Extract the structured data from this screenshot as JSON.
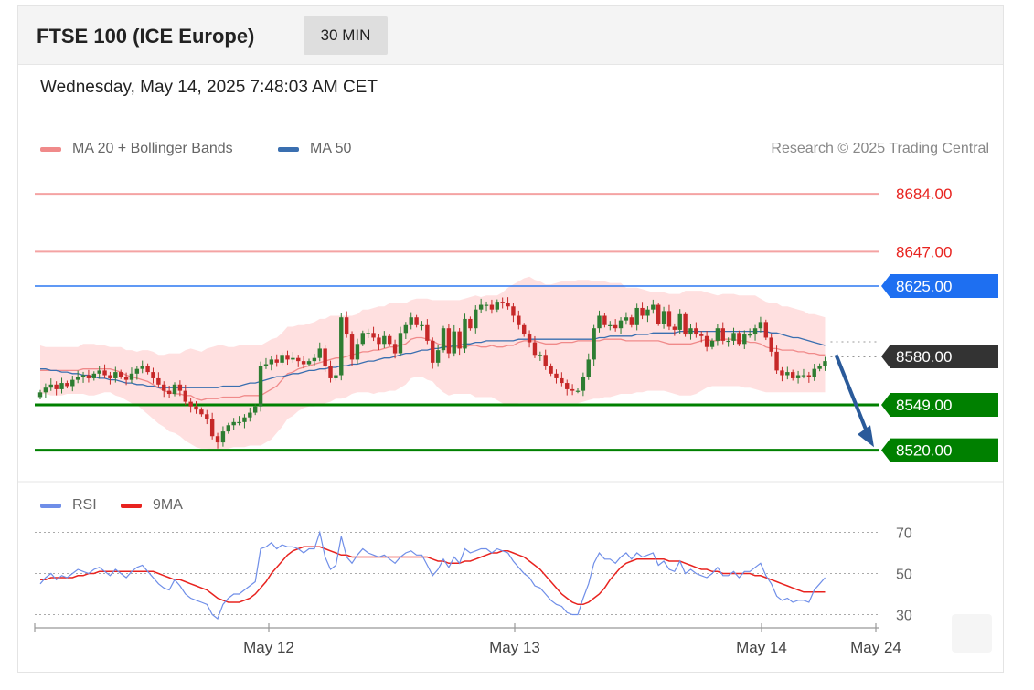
{
  "header": {
    "title": "FTSE 100 (ICE Europe)",
    "interval": "30 MIN"
  },
  "datetime": "Wednesday, May 14, 2025 7:48:03 AM CET",
  "legend": {
    "ma20_bb": "MA 20 + Bollinger Bands",
    "ma50": "MA 50",
    "credit": "Research © 2025 Trading Central",
    "rsi": "RSI",
    "ma9": "9MA"
  },
  "colors": {
    "resistance": "#f4a3a3",
    "resistance_text": "#e8231f",
    "pivot": "#1e6ff1",
    "support": "#008000",
    "current": "#333333",
    "bull": "#2e7d32",
    "bear": "#c62828",
    "bollinger": "#ffd6d6",
    "ma20": "#f08a8a",
    "ma50": "#3a6fb0",
    "rsi": "#6f8ee8",
    "ma9": "#e8231f",
    "arrow": "#2a5a9a"
  },
  "chart_data": [
    {
      "type": "candlestick",
      "title": "FTSE 100 (ICE Europe)",
      "interval": "30 MIN",
      "ylim": [
        8504,
        8701
      ],
      "x_ticks": [
        "May 12",
        "May 13",
        "May 14",
        "May 24"
      ],
      "levels": [
        {
          "label": "8684.00",
          "value": 8684,
          "kind": "resistance"
        },
        {
          "label": "8647.00",
          "value": 8647,
          "kind": "resistance"
        },
        {
          "label": "8625.00",
          "value": 8625,
          "kind": "pivot"
        },
        {
          "label": "8580.00",
          "value": 8580,
          "kind": "current"
        },
        {
          "label": "8549.00",
          "value": 8549,
          "kind": "support"
        },
        {
          "label": "8520.00",
          "value": 8520,
          "kind": "support"
        }
      ],
      "closes": [
        8557,
        8560,
        8562,
        8559,
        8563,
        8561,
        8565,
        8567,
        8568,
        8566,
        8569,
        8571,
        8568,
        8566,
        8570,
        8567,
        8565,
        8569,
        8572,
        8574,
        8570,
        8566,
        8562,
        8558,
        8556,
        8562,
        8558,
        8551,
        8548,
        8546,
        8543,
        8540,
        8529,
        8525,
        8532,
        8536,
        8538,
        8538,
        8541,
        8544,
        8548,
        8574,
        8575,
        8578,
        8576,
        8581,
        8578,
        8579,
        8577,
        8575,
        8577,
        8579,
        8585,
        8574,
        8566,
        8568,
        8605,
        8594,
        8578,
        8588,
        8595,
        8595,
        8592,
        8588,
        8593,
        8588,
        8582,
        8595,
        8600,
        8605,
        8600,
        8600,
        8590,
        8576,
        8584,
        8598,
        8582,
        8596,
        8585,
        8604,
        8598,
        8610,
        8613,
        8613,
        8610,
        8615,
        8614,
        8612,
        8606,
        8600,
        8594,
        8589,
        8581,
        8581,
        8574,
        8569,
        8566,
        8563,
        8559,
        8558,
        8558,
        8567,
        8578,
        8598,
        8606,
        8600,
        8600,
        8598,
        8603,
        8605,
        8600,
        8611,
        8606,
        8610,
        8613,
        8601,
        8609,
        8599,
        8597,
        8607,
        8594,
        8598,
        8594,
        8593,
        8586,
        8590,
        8598,
        8590,
        8590,
        8595,
        8588,
        8594,
        8594,
        8598,
        8602,
        8592,
        8583,
        8571,
        8568,
        8570,
        8566,
        8568,
        8568,
        8567,
        8572,
        8574,
        8577
      ],
      "bb_upper": [
        8587,
        8586,
        8586,
        8586,
        8586,
        8586,
        8586,
        8586,
        8588,
        8588,
        8588,
        8587,
        8587,
        8586,
        8586,
        8586,
        8584,
        8584,
        8583,
        8584,
        8584,
        8583,
        8581,
        8581,
        8582,
        8582,
        8582,
        8584,
        8585,
        8584,
        8583,
        8585,
        8586,
        8587,
        8587,
        8586,
        8586,
        8587,
        8587,
        8587,
        8587,
        8587,
        8589,
        8591,
        8592,
        8595,
        8599,
        8599,
        8600,
        8600,
        8601,
        8602,
        8604,
        8604,
        8606,
        8606,
        8606,
        8606,
        8606,
        8607,
        8610,
        8610,
        8611,
        8612,
        8612,
        8614,
        8614,
        8614,
        8614,
        8616,
        8617,
        8617,
        8617,
        8616,
        8616,
        8616,
        8616,
        8616,
        8616,
        8617,
        8618,
        8619,
        8618,
        8619,
        8619,
        8619,
        8621,
        8624,
        8626,
        8628,
        8630,
        8631,
        8629,
        8628,
        8626,
        8626,
        8627,
        8628,
        8628,
        8628,
        8629,
        8629,
        8629,
        8628,
        8628,
        8628,
        8627,
        8627,
        8627,
        8624,
        8624,
        8624,
        8623,
        8622,
        8621,
        8621,
        8621,
        8620,
        8620,
        8620,
        8622,
        8622,
        8622,
        8622,
        8621,
        8620,
        8619,
        8620,
        8620,
        8620,
        8619,
        8619,
        8619,
        8619,
        8617,
        8615,
        8614,
        8614,
        8612,
        8612,
        8611,
        8610,
        8609,
        8607,
        8607,
        8606,
        8605
      ],
      "bb_lower": [
        8556,
        8556,
        8555,
        8555,
        8555,
        8556,
        8556,
        8556,
        8556,
        8555,
        8555,
        8556,
        8557,
        8557,
        8555,
        8554,
        8552,
        8550,
        8549,
        8546,
        8543,
        8540,
        8537,
        8535,
        8532,
        8531,
        8529,
        8526,
        8524,
        8522,
        8521,
        8521,
        8520,
        8520,
        8521,
        8521,
        8522,
        8522,
        8522,
        8523,
        8523,
        8523,
        8525,
        8527,
        8531,
        8535,
        8540,
        8542,
        8545,
        8547,
        8548,
        8548,
        8549,
        8550,
        8551,
        8553,
        8553,
        8554,
        8556,
        8557,
        8557,
        8557,
        8556,
        8557,
        8557,
        8558,
        8558,
        8560,
        8562,
        8566,
        8567,
        8567,
        8565,
        8564,
        8560,
        8557,
        8555,
        8556,
        8556,
        8556,
        8556,
        8554,
        8554,
        8554,
        8554,
        8552,
        8550,
        8549,
        8549,
        8550,
        8550,
        8550,
        8550,
        8550,
        8550,
        8550,
        8550,
        8550,
        8550,
        8550,
        8550,
        8551,
        8552,
        8553,
        8553,
        8554,
        8554,
        8555,
        8556,
        8556,
        8556,
        8557,
        8557,
        8558,
        8558,
        8558,
        8558,
        8557,
        8556,
        8555,
        8555,
        8555,
        8556,
        8558,
        8560,
        8561,
        8561,
        8561,
        8561,
        8561,
        8561,
        8560,
        8560,
        8559,
        8558,
        8557,
        8557,
        8557,
        8557,
        8557,
        8557,
        8557,
        8557,
        8557,
        8557,
        8557,
        8557
      ],
      "ma20": [
        8571,
        8571,
        8571,
        8571,
        8571,
        8571,
        8571,
        8571,
        8572,
        8572,
        8572,
        8572,
        8572,
        8572,
        8571,
        8570,
        8568,
        8567,
        8566,
        8565,
        8564,
        8562,
        8560,
        8558,
        8557,
        8556,
        8556,
        8555,
        8555,
        8553,
        8552,
        8553,
        8553,
        8553,
        8554,
        8554,
        8554,
        8554,
        8555,
        8555,
        8555,
        8555,
        8557,
        8559,
        8561,
        8565,
        8569,
        8570,
        8572,
        8573,
        8574,
        8575,
        8576,
        8577,
        8578,
        8579,
        8579,
        8580,
        8581,
        8582,
        8583,
        8583,
        8584,
        8584,
        8585,
        8586,
        8586,
        8587,
        8588,
        8591,
        8592,
        8592,
        8591,
        8590,
        8588,
        8587,
        8586,
        8586,
        8586,
        8586,
        8587,
        8587,
        8586,
        8586,
        8587,
        8586,
        8586,
        8587,
        8587,
        8589,
        8590,
        8590,
        8590,
        8589,
        8588,
        8588,
        8588,
        8589,
        8589,
        8589,
        8590,
        8590,
        8590,
        8590,
        8590,
        8591,
        8591,
        8591,
        8591,
        8590,
        8590,
        8590,
        8590,
        8590,
        8590,
        8590,
        8589,
        8588,
        8588,
        8588,
        8588,
        8588,
        8589,
        8590,
        8591,
        8590,
        8590,
        8591,
        8591,
        8591,
        8590,
        8590,
        8589,
        8589,
        8588,
        8586,
        8585,
        8585,
        8584,
        8584,
        8584,
        8583,
        8583,
        8582,
        8582,
        8581,
        8581
      ],
      "ma50": [
        8572,
        8572,
        8571,
        8571,
        8570,
        8570,
        8569,
        8569,
        8568,
        8568,
        8567,
        8566,
        8566,
        8565,
        8565,
        8564,
        8563,
        8563,
        8562,
        8562,
        8561,
        8561,
        8560,
        8560,
        8560,
        8560,
        8560,
        8560,
        8560,
        8560,
        8560,
        8560,
        8560,
        8560,
        8561,
        8561,
        8561,
        8561,
        8562,
        8563,
        8563,
        8564,
        8565,
        8566,
        8567,
        8567,
        8568,
        8569,
        8569,
        8570,
        8571,
        8571,
        8572,
        8572,
        8573,
        8573,
        8574,
        8574,
        8575,
        8575,
        8576,
        8577,
        8577,
        8578,
        8579,
        8579,
        8580,
        8581,
        8582,
        8582,
        8583,
        8584,
        8584,
        8585,
        8585,
        8586,
        8586,
        8587,
        8587,
        8588,
        8588,
        8589,
        8589,
        8590,
        8590,
        8590,
        8590,
        8590,
        8590,
        8591,
        8591,
        8591,
        8591,
        8591,
        8591,
        8591,
        8591,
        8591,
        8591,
        8591,
        8591,
        8591,
        8591,
        8591,
        8592,
        8592,
        8593,
        8593,
        8593,
        8593,
        8593,
        8594,
        8594,
        8594,
        8595,
        8595,
        8595,
        8595,
        8595,
        8596,
        8596,
        8596,
        8596,
        8596,
        8596,
        8596,
        8596,
        8596,
        8596,
        8596,
        8596,
        8596,
        8596,
        8596,
        8596,
        8596,
        8595,
        8595,
        8594,
        8593,
        8592,
        8592,
        8591,
        8590,
        8589,
        8588,
        8587
      ]
    },
    {
      "type": "line",
      "title": "RSI",
      "ylim": [
        20,
        80
      ],
      "y_ticks": [
        70,
        50,
        30
      ],
      "series": [
        {
          "name": "RSI",
          "values": [
            45,
            48,
            50,
            47,
            49,
            48,
            50,
            52,
            51,
            50,
            52,
            53,
            51,
            49,
            52,
            50,
            48,
            51,
            53,
            54,
            51,
            48,
            45,
            43,
            42,
            47,
            44,
            40,
            38,
            37,
            36,
            35,
            30,
            28,
            35,
            38,
            40,
            40,
            42,
            44,
            46,
            62,
            63,
            65,
            62,
            64,
            63,
            63,
            62,
            60,
            62,
            62,
            70,
            58,
            52,
            54,
            68,
            58,
            55,
            59,
            62,
            60,
            59,
            58,
            59,
            57,
            55,
            58,
            60,
            61,
            59,
            59,
            54,
            49,
            52,
            57,
            53,
            58,
            55,
            62,
            60,
            61,
            62,
            62,
            60,
            62,
            61,
            60,
            56,
            53,
            50,
            48,
            44,
            43,
            40,
            37,
            35,
            34,
            31,
            30,
            30,
            38,
            45,
            55,
            60,
            57,
            57,
            55,
            58,
            60,
            57,
            60,
            58,
            59,
            60,
            54,
            56,
            52,
            51,
            56,
            50,
            52,
            50,
            49,
            48,
            50,
            53,
            49,
            49,
            51,
            48,
            51,
            51,
            53,
            55,
            49,
            45,
            39,
            37,
            38,
            36,
            37,
            37,
            36,
            42,
            45,
            48
          ]
        },
        {
          "name": "9MA",
          "values": [
            47,
            47,
            48,
            48,
            48,
            48,
            48,
            49,
            49,
            50,
            50,
            51,
            51,
            51,
            51,
            51,
            51,
            51,
            51,
            51,
            51,
            51,
            50,
            49,
            48,
            47,
            47,
            46,
            45,
            44,
            43,
            42,
            40,
            38,
            37,
            36,
            36,
            36,
            37,
            38,
            40,
            43,
            46,
            50,
            53,
            56,
            59,
            61,
            62,
            63,
            63,
            63,
            63,
            62,
            61,
            60,
            59,
            59,
            58,
            58,
            58,
            58,
            58,
            58,
            58,
            58,
            58,
            58,
            58,
            58,
            58,
            58,
            58,
            57,
            56,
            56,
            55,
            55,
            55,
            56,
            56,
            57,
            58,
            59,
            60,
            60,
            61,
            61,
            60,
            59,
            58,
            56,
            54,
            52,
            49,
            46,
            43,
            40,
            38,
            36,
            35,
            35,
            36,
            38,
            40,
            43,
            47,
            50,
            53,
            55,
            56,
            57,
            57,
            57,
            57,
            57,
            57,
            56,
            56,
            56,
            55,
            54,
            53,
            52,
            52,
            51,
            51,
            50,
            50,
            50,
            50,
            50,
            50,
            49,
            49,
            48,
            47,
            46,
            45,
            44,
            43,
            42,
            41,
            41,
            41,
            41,
            41
          ]
        }
      ]
    }
  ]
}
